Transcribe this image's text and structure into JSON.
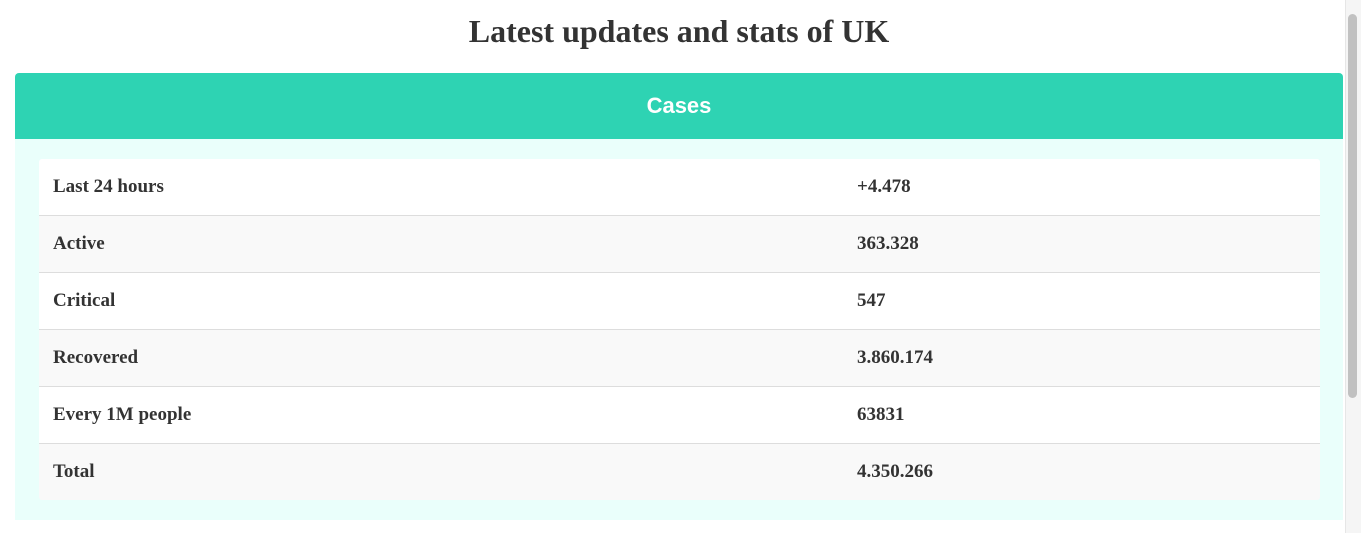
{
  "page": {
    "title": "Latest updates and stats of UK"
  },
  "card": {
    "header": "Cases",
    "header_color": "#2ed3b3",
    "body_color": "#eafffb"
  },
  "stats": [
    {
      "label": "Last 24 hours",
      "value": "+4.478"
    },
    {
      "label": "Active",
      "value": "363.328"
    },
    {
      "label": "Critical",
      "value": "547"
    },
    {
      "label": "Recovered",
      "value": "3.860.174"
    },
    {
      "label": "Every 1M people",
      "value": "63831"
    },
    {
      "label": "Total",
      "value": "4.350.266"
    }
  ]
}
